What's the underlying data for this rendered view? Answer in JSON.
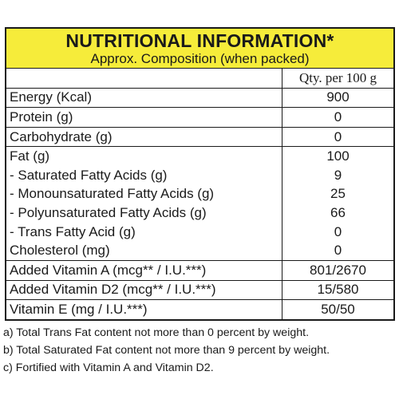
{
  "label": {
    "title": "NUTRITIONAL INFORMATION*",
    "subtitle": "Approx. Composition (when packed)",
    "column_header": "Qty. per 100 g",
    "header_color": "#f6ec3a",
    "rows": [
      {
        "name": "Energy  (Kcal)",
        "qty": "900"
      },
      {
        "name": "Protein (g)",
        "qty": "0"
      },
      {
        "name": "Carbohydrate (g)",
        "qty": "0"
      },
      {
        "name": "Fat (g)",
        "qty": "100"
      },
      {
        "name": "- Saturated Fatty Acids (g)",
        "qty": "9"
      },
      {
        "name": "- Monounsaturated Fatty Acids (g)",
        "qty": "25"
      },
      {
        "name": "- Polyunsaturated Fatty Acids (g)",
        "qty": "66"
      },
      {
        "name": "- Trans Fatty Acid (g)",
        "qty": "0"
      },
      {
        "name": "Cholesterol (mg)",
        "qty": "0"
      },
      {
        "name": "Added Vitamin A (mcg** / I.U.***)",
        "qty": "801/2670"
      },
      {
        "name": "Added Vitamin D2 (mcg** / I.U.***)",
        "qty": "15/580"
      },
      {
        "name": "Vitamin E (mg / I.U.***)",
        "qty": "50/50"
      }
    ]
  },
  "footnotes": [
    "a)  Total Trans Fat content not more than 0 percent by weight.",
    "b)  Total Saturated Fat content not more than 9 percent by weight.",
    "c)   Fortified with Vitamin A and Vitamin D2."
  ]
}
